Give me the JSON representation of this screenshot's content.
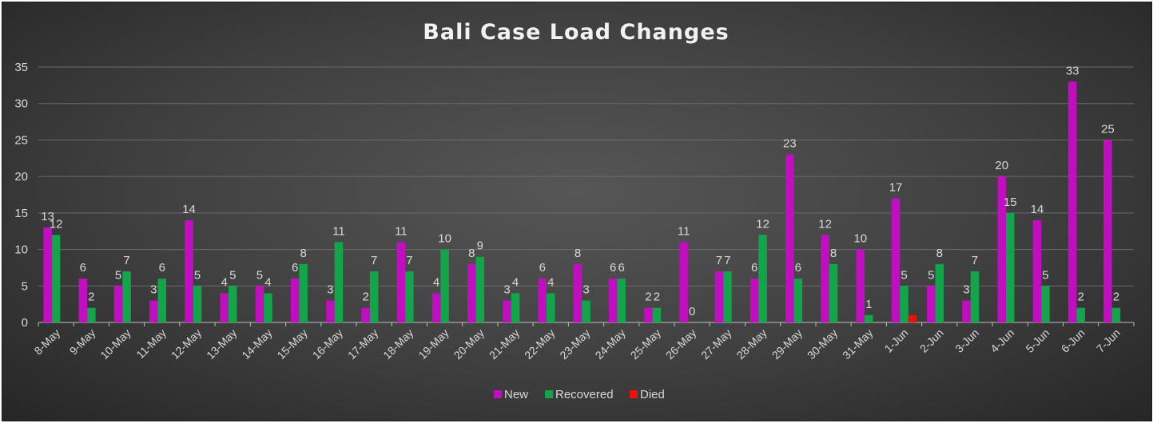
{
  "chart_data": {
    "type": "bar",
    "title": "Bali Case Load Changes",
    "xlabel": "",
    "ylabel": "",
    "ylim": [
      0,
      35
    ],
    "yticks": [
      0,
      5,
      10,
      15,
      20,
      25,
      30,
      35
    ],
    "grid": true,
    "legend_position": "bottom",
    "categories": [
      "8-May",
      "9-May",
      "10-May",
      "11-May",
      "12-May",
      "13-May",
      "14-May",
      "15-May",
      "16-May",
      "17-May",
      "18-May",
      "19-May",
      "20-May",
      "21-May",
      "22-May",
      "23-May",
      "24-May",
      "25-May",
      "26-May",
      "27-May",
      "28-May",
      "29-May",
      "30-May",
      "31-May",
      "1-Jun",
      "2-Jun",
      "3-Jun",
      "4-Jun",
      "5-Jun",
      "6-Jun",
      "7-Jun"
    ],
    "series": [
      {
        "name": "New",
        "color": "#c00ec0",
        "values": [
          13,
          6,
          5,
          3,
          14,
          4,
          5,
          6,
          3,
          2,
          11,
          4,
          8,
          3,
          6,
          8,
          6,
          2,
          11,
          7,
          6,
          23,
          12,
          10,
          17,
          5,
          3,
          20,
          14,
          33,
          25
        ],
        "labels": [
          "13",
          "6",
          "5",
          "3",
          "14",
          "4",
          "5",
          "6",
          "3",
          "2",
          "11",
          "4",
          "8",
          "3",
          "6",
          "8",
          "6",
          "2",
          "11",
          "7",
          "6",
          "23",
          "12",
          "10",
          "17",
          "5",
          "3",
          "20",
          "14",
          "33",
          "25"
        ]
      },
      {
        "name": "Recovered",
        "color": "#12a54a",
        "values": [
          12,
          2,
          7,
          6,
          5,
          5,
          4,
          8,
          11,
          7,
          7,
          10,
          9,
          4,
          4,
          3,
          6,
          2,
          0,
          7,
          12,
          6,
          8,
          1,
          5,
          8,
          7,
          15,
          5,
          2,
          2
        ],
        "labels": [
          "12",
          "2",
          "7",
          "6",
          "5",
          "5",
          "4",
          "8",
          "11",
          "7",
          "7",
          "10",
          "9",
          "4",
          "4",
          "3",
          "6",
          "2",
          "0",
          "7",
          "12",
          "6",
          "8",
          "1",
          "5",
          "8",
          "7",
          "15",
          "5",
          "2",
          "2"
        ]
      },
      {
        "name": "Died",
        "color": "#e81010",
        "values": [
          0,
          0,
          0,
          0,
          0,
          0,
          0,
          0,
          0,
          0,
          0,
          0,
          0,
          0,
          0,
          0,
          0,
          0,
          0,
          0,
          0,
          0,
          0,
          0,
          1,
          0,
          0,
          0,
          0,
          0,
          0
        ],
        "labels": [
          "",
          "",
          "",
          "",
          "",
          "",
          "",
          "",
          "",
          "",
          "",
          "",
          "",
          "",
          "",
          "",
          "",
          "",
          "",
          "",
          "",
          "",
          "",
          "",
          "",
          "",
          "",
          "",
          "",
          "",
          ""
        ]
      }
    ]
  }
}
